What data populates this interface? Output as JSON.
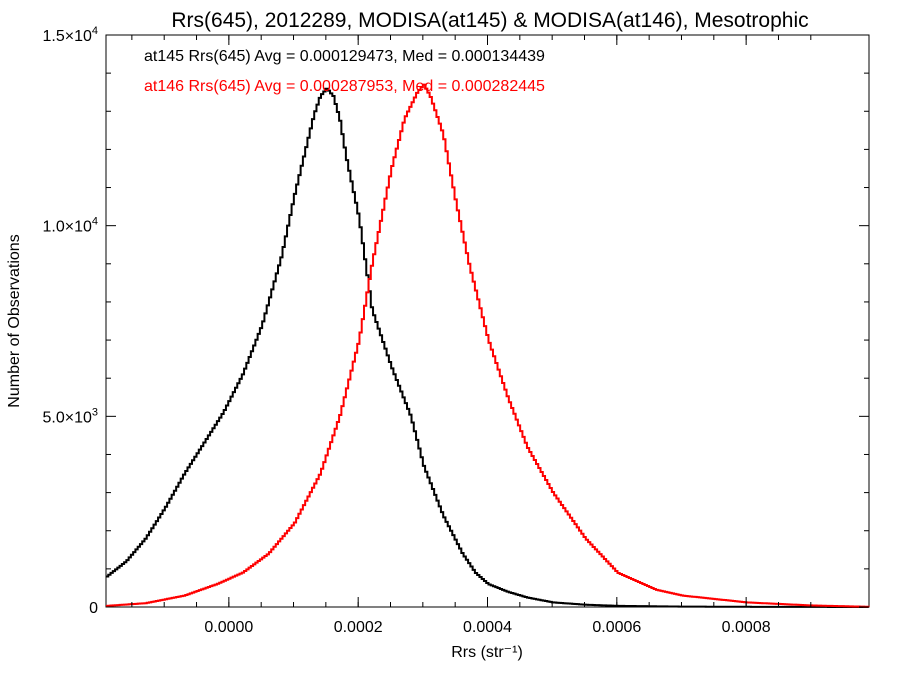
{
  "chart_data": {
    "type": "line",
    "title": "Rrs(645), 2012289, MODISA(at145) & MODISA(at146), Mesotrophic",
    "xlabel": "Rrs (str⁻¹)",
    "ylabel": "Number of Observations",
    "xlim": [
      -0.00019,
      0.00099
    ],
    "ylim": [
      0,
      15000
    ],
    "x_ticks": [
      0.0,
      0.0002,
      0.0004,
      0.0006,
      0.0008
    ],
    "x_tick_labels": [
      "0.0000",
      "0.0002",
      "0.0004",
      "0.0006",
      "0.0008"
    ],
    "y_ticks": [
      0,
      5000,
      10000,
      15000
    ],
    "y_tick_labels": [
      {
        "mant": "0",
        "exp": ""
      },
      {
        "mant": "5.0×10",
        "exp": "3"
      },
      {
        "mant": "1.0×10",
        "exp": "4"
      },
      {
        "mant": "1.5×10",
        "exp": "4"
      }
    ],
    "annotations": [
      {
        "text": "at145 Rrs(645) Avg = 0.000129473, Med = 0.000134439",
        "color": "#000000"
      },
      {
        "text": "at146 Rrs(645) Avg = 0.000287953, Med = 0.000282445",
        "color": "#ff0000"
      }
    ],
    "series": [
      {
        "color": "#000000",
        "x": [
          -0.00019,
          -0.00016,
          -0.00013,
          -0.0001,
          -7e-05,
          -4e-05,
          -1e-05,
          2e-05,
          5e-05,
          8e-05,
          0.0001,
          0.00012,
          0.00013,
          0.00014,
          0.00015,
          0.00016,
          0.00017,
          0.00018,
          0.0002,
          0.00022,
          0.00025,
          0.00028,
          0.0003,
          0.00033,
          0.00036,
          0.00038,
          0.0004,
          0.00043,
          0.00046,
          0.0005,
          0.00055,
          0.0006,
          0.0007,
          0.0008,
          0.00099
        ],
        "y": [
          800,
          1200,
          1800,
          2600,
          3500,
          4300,
          5100,
          6100,
          7400,
          9200,
          10800,
          12200,
          12900,
          13400,
          13600,
          13400,
          12800,
          11800,
          10200,
          7800,
          6300,
          5000,
          3700,
          2400,
          1400,
          900,
          600,
          400,
          250,
          120,
          60,
          30,
          10,
          5,
          0
        ]
      },
      {
        "color": "#ff0000",
        "x": [
          -0.00019,
          -0.00013,
          -7e-05,
          -2e-05,
          2e-05,
          6e-05,
          0.0001,
          0.00014,
          0.00017,
          0.0002,
          0.00022,
          0.00025,
          0.00027,
          0.00029,
          0.0003,
          0.00031,
          0.00033,
          0.00035,
          0.00037,
          0.0004,
          0.00043,
          0.00046,
          0.0005,
          0.00055,
          0.0006,
          0.00066,
          0.0007,
          0.0008,
          0.0009,
          0.00099
        ],
        "y": [
          30,
          100,
          300,
          600,
          900,
          1400,
          2200,
          3500,
          5000,
          7000,
          9000,
          11500,
          12800,
          13500,
          13700,
          13400,
          12400,
          10600,
          9000,
          7000,
          5500,
          4200,
          3000,
          1800,
          900,
          450,
          300,
          120,
          40,
          5
        ]
      }
    ]
  }
}
